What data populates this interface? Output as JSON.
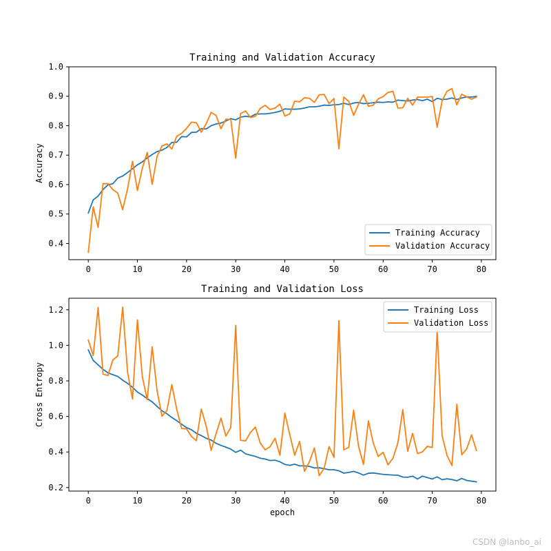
{
  "colors": {
    "training": "#1f77b4",
    "validation": "#ff7f0e",
    "axes": "#000000",
    "legend_border": "#cccccc"
  },
  "watermark": "CSDN @lanbo_ai",
  "chart_data": [
    {
      "type": "line",
      "title": "Training and Validation Accuracy",
      "xlabel": "",
      "ylabel": "Accuracy",
      "xlim": [
        -3.95,
        82.95
      ],
      "ylim": [
        0.345,
        1.0
      ],
      "xticks": [
        0,
        10,
        20,
        30,
        40,
        50,
        60,
        70,
        80
      ],
      "yticks": [
        0.4,
        0.5,
        0.6,
        0.7,
        0.8,
        0.9,
        1.0
      ],
      "legend_position": "lower-right",
      "series": [
        {
          "name": "Training Accuracy",
          "color_key": "training",
          "values": [
            0.503,
            0.548,
            0.561,
            0.583,
            0.599,
            0.603,
            0.622,
            0.629,
            0.641,
            0.654,
            0.667,
            0.677,
            0.691,
            0.702,
            0.712,
            0.717,
            0.726,
            0.743,
            0.744,
            0.763,
            0.762,
            0.777,
            0.778,
            0.79,
            0.789,
            0.8,
            0.806,
            0.809,
            0.816,
            0.824,
            0.82,
            0.829,
            0.832,
            0.83,
            0.839,
            0.84,
            0.84,
            0.842,
            0.845,
            0.849,
            0.857,
            0.856,
            0.856,
            0.857,
            0.86,
            0.864,
            0.864,
            0.866,
            0.87,
            0.869,
            0.871,
            0.872,
            0.876,
            0.872,
            0.877,
            0.879,
            0.875,
            0.876,
            0.878,
            0.88,
            0.879,
            0.881,
            0.88,
            0.887,
            0.885,
            0.884,
            0.887,
            0.889,
            0.885,
            0.89,
            0.882,
            0.893,
            0.889,
            0.89,
            0.894,
            0.889,
            0.894,
            0.898,
            0.897,
            0.9
          ]
        },
        {
          "name": "Validation Accuracy",
          "color_key": "validation",
          "values": [
            0.37,
            0.524,
            0.455,
            0.603,
            0.603,
            0.583,
            0.571,
            0.515,
            0.586,
            0.679,
            0.58,
            0.656,
            0.709,
            0.601,
            0.696,
            0.731,
            0.738,
            0.721,
            0.764,
            0.774,
            0.791,
            0.812,
            0.81,
            0.778,
            0.807,
            0.845,
            0.835,
            0.79,
            0.822,
            0.821,
            0.69,
            0.841,
            0.85,
            0.828,
            0.832,
            0.859,
            0.869,
            0.855,
            0.86,
            0.873,
            0.833,
            0.84,
            0.883,
            0.881,
            0.895,
            0.893,
            0.879,
            0.905,
            0.906,
            0.875,
            0.892,
            0.722,
            0.897,
            0.883,
            0.835,
            0.873,
            0.905,
            0.866,
            0.87,
            0.891,
            0.899,
            0.913,
            0.917,
            0.86,
            0.861,
            0.893,
            0.87,
            0.897,
            0.897,
            0.897,
            0.899,
            0.795,
            0.885,
            0.917,
            0.926,
            0.871,
            0.907,
            0.898,
            0.89,
            0.897
          ]
        }
      ]
    },
    {
      "type": "line",
      "title": "Training and Validation Loss",
      "xlabel": "epoch",
      "ylabel": "Cross Entropy",
      "xlim": [
        -3.95,
        82.95
      ],
      "ylim": [
        0.18,
        1.265
      ],
      "xticks": [
        0,
        10,
        20,
        30,
        40,
        50,
        60,
        70,
        80
      ],
      "yticks": [
        0.2,
        0.4,
        0.6,
        0.8,
        1.0,
        1.2
      ],
      "legend_position": "upper-right",
      "series": [
        {
          "name": "Training Loss",
          "color_key": "training",
          "values": [
            0.975,
            0.915,
            0.89,
            0.865,
            0.845,
            0.835,
            0.825,
            0.804,
            0.786,
            0.764,
            0.737,
            0.72,
            0.7,
            0.682,
            0.656,
            0.632,
            0.615,
            0.594,
            0.576,
            0.556,
            0.537,
            0.525,
            0.505,
            0.492,
            0.477,
            0.467,
            0.449,
            0.437,
            0.427,
            0.416,
            0.398,
            0.41,
            0.39,
            0.382,
            0.375,
            0.365,
            0.36,
            0.352,
            0.354,
            0.345,
            0.33,
            0.325,
            0.331,
            0.322,
            0.322,
            0.319,
            0.31,
            0.311,
            0.306,
            0.3,
            0.3,
            0.294,
            0.281,
            0.285,
            0.291,
            0.282,
            0.27,
            0.28,
            0.282,
            0.278,
            0.274,
            0.272,
            0.27,
            0.269,
            0.259,
            0.258,
            0.264,
            0.248,
            0.264,
            0.256,
            0.248,
            0.26,
            0.244,
            0.249,
            0.245,
            0.238,
            0.251,
            0.24,
            0.236,
            0.232
          ]
        },
        {
          "name": "Validation Loss",
          "color_key": "validation",
          "values": [
            1.03,
            0.943,
            1.213,
            0.838,
            0.83,
            0.918,
            0.94,
            1.214,
            0.847,
            0.698,
            1.143,
            0.823,
            0.694,
            0.991,
            0.745,
            0.601,
            0.634,
            0.779,
            0.64,
            0.532,
            0.53,
            0.487,
            0.464,
            0.641,
            0.545,
            0.409,
            0.503,
            0.59,
            0.49,
            0.538,
            1.112,
            0.466,
            0.462,
            0.51,
            0.54,
            0.45,
            0.412,
            0.43,
            0.477,
            0.382,
            0.618,
            0.498,
            0.382,
            0.459,
            0.292,
            0.345,
            0.422,
            0.267,
            0.308,
            0.43,
            0.37,
            1.138,
            0.412,
            0.426,
            0.635,
            0.432,
            0.33,
            0.575,
            0.45,
            0.375,
            0.398,
            0.328,
            0.365,
            0.451,
            0.638,
            0.404,
            0.504,
            0.391,
            0.401,
            0.432,
            0.425,
            1.083,
            0.492,
            0.381,
            0.324,
            0.668,
            0.384,
            0.417,
            0.496,
            0.407
          ]
        }
      ]
    }
  ]
}
